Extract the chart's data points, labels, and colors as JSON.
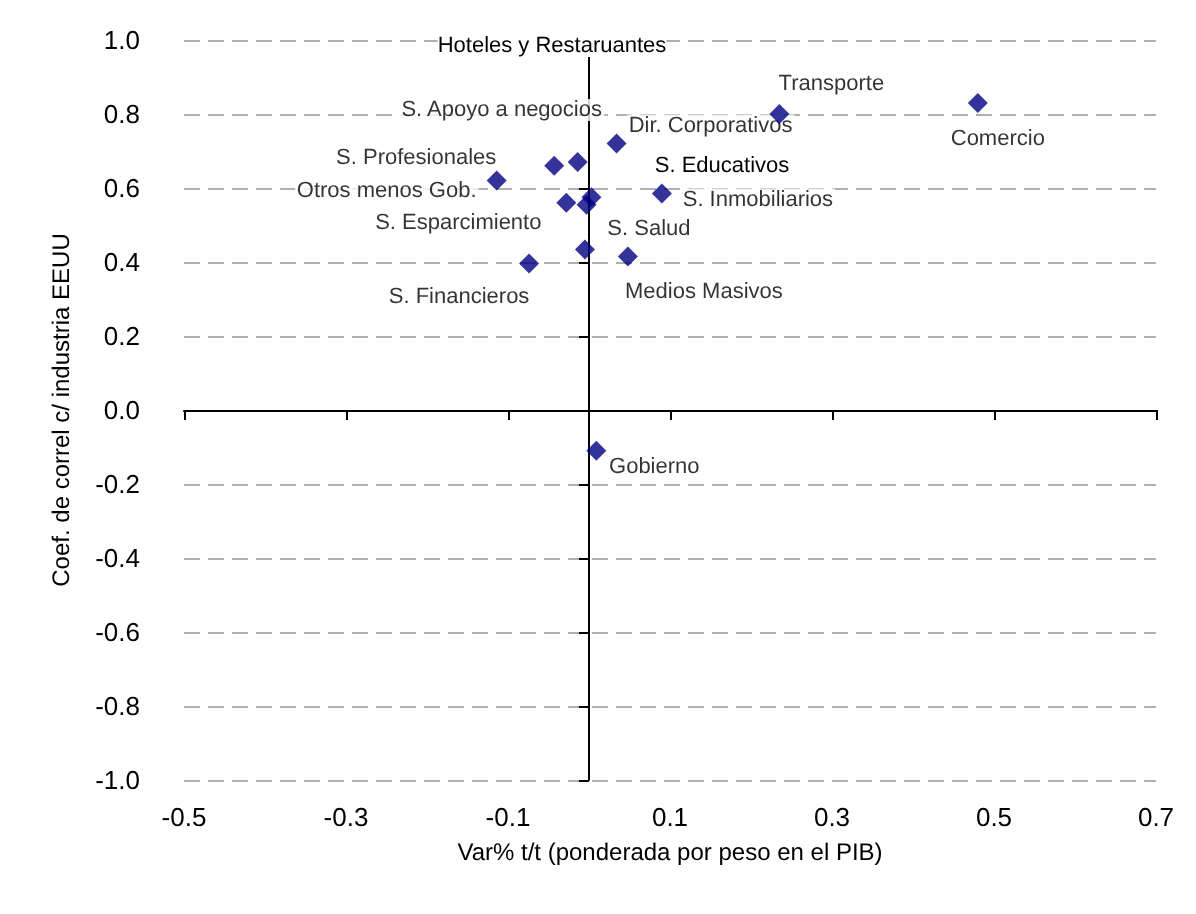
{
  "chart_data": {
    "type": "scatter",
    "xlabel": "Var% t/t (ponderada por peso en el PIB)",
    "ylabel": "Coef. de correl c/ industria EEUU",
    "series": [
      {
        "color": "#000080",
        "x": [
          0.235,
          0.48,
          0.009,
          0.034,
          0.09,
          -0.014,
          -0.043,
          -0.114,
          -0.028,
          -0.003,
          0.003,
          -0.005,
          0.048,
          -0.074
        ],
        "values": [
          0.8,
          0.83,
          -0.11,
          0.72,
          0.585,
          0.67,
          0.66,
          0.62,
          0.56,
          0.555,
          0.575,
          0.434,
          0.415,
          0.396
        ]
      }
    ],
    "annotations": [
      "Hoteles y Restaruantes",
      {
        "text": "Transporte",
        "x": 0.235,
        "y": 0.8
      },
      {
        "text": "S. Apoyo a negocios",
        "x": -0.014,
        "y": 0.67
      },
      {
        "text": "Dir. Corporativos",
        "x": 0.034,
        "y": 0.72
      },
      {
        "text": "Comercio",
        "x": 0.48,
        "y": 0.83
      },
      {
        "text": "S. Profesionales",
        "x": -0.043,
        "y": 0.66
      },
      "S. Educativos",
      {
        "text": "Otros menos Gob.",
        "x": -0.114,
        "y": 0.62
      },
      {
        "text": "S. Inmobiliarios",
        "x": 0.09,
        "y": 0.585
      },
      {
        "text": "S. Esparcimiento",
        "x": -0.028,
        "y": 0.56
      },
      {
        "text": "S. Salud",
        "x": -0.005,
        "y": 0.434
      },
      {
        "text": "S. Financieros",
        "x": -0.074,
        "y": 0.396
      },
      {
        "text": "Medios Masivos",
        "x": 0.048,
        "y": 0.415
      },
      {
        "text": "Gobierno",
        "x": 0.009,
        "y": -0.11
      }
    ],
    "xlim": [
      -0.5,
      0.7
    ],
    "xticks": [
      -0.5,
      -0.3,
      -0.1,
      0.1,
      0.3,
      0.5,
      0.7
    ],
    "ylim": [
      -1.0,
      1.0
    ],
    "yticks": [
      {
        "value": -1.0,
        "label": "-1.0"
      },
      {
        "value": -0.8,
        "label": "-0.8"
      },
      {
        "value": -0.6,
        "label": "-0.6"
      },
      {
        "value": -0.4,
        "label": "-0.4"
      },
      {
        "value": -0.2,
        "label": "-0.2"
      },
      {
        "value": 0.0,
        "label": "0.0"
      },
      {
        "value": 0.2,
        "label": "0.2"
      },
      {
        "value": 0.4,
        "label": "0.4"
      },
      {
        "value": 0.6,
        "label": "0.6"
      },
      {
        "value": 0.8,
        "label": "0.8"
      },
      {
        "value": 1.0,
        "label": "1.0"
      }
    ],
    "grid": "y",
    "marker": "diamond"
  }
}
